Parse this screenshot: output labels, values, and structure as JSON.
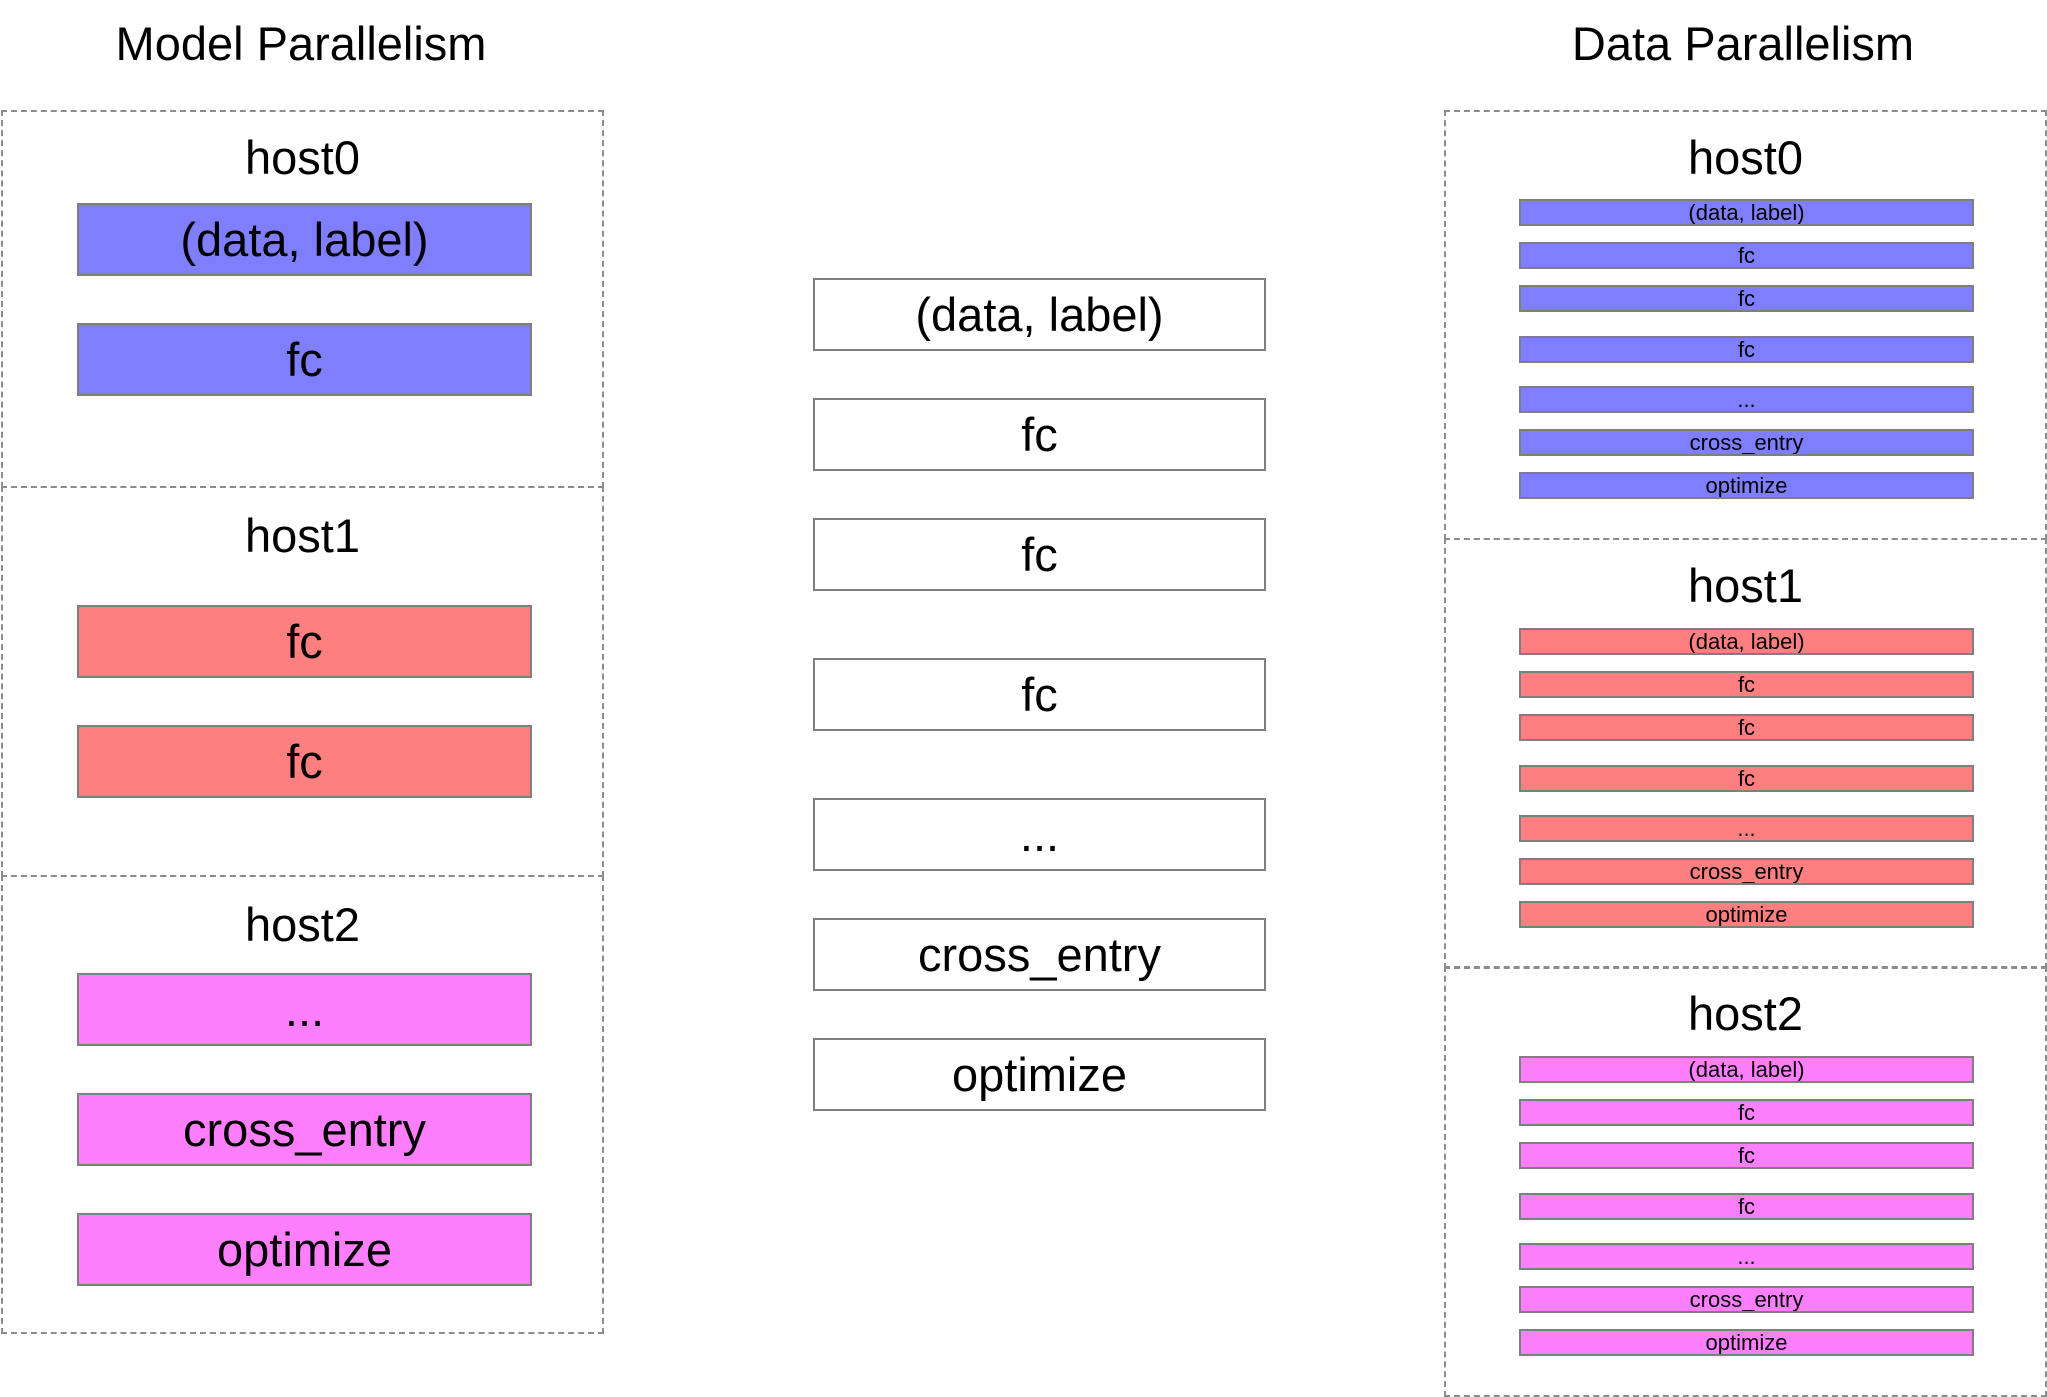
{
  "colors": {
    "host0": "#7f7ffe",
    "host1": "#fe7f7f",
    "host2": "#fe7ffe",
    "plain": "#ffffff",
    "border": "#7f7f7f",
    "dashed": "#8c8c8c"
  },
  "model_parallelism": {
    "title": "Model Parallelism",
    "hosts": [
      {
        "label": "host0",
        "layers": [
          "(data, label)",
          "fc"
        ]
      },
      {
        "label": "host1",
        "layers": [
          "fc",
          "fc"
        ]
      },
      {
        "label": "host2",
        "layers": [
          "...",
          "cross_entry",
          "optimize"
        ]
      }
    ]
  },
  "network": {
    "layers": [
      "(data, label)",
      "fc",
      "fc",
      "fc",
      "...",
      "cross_entry",
      "optimize"
    ]
  },
  "data_parallelism": {
    "title": "Data Parallelism",
    "hosts": [
      {
        "label": "host0",
        "layers": [
          "(data, label)",
          "fc",
          "fc",
          "fc",
          "...",
          "cross_entry",
          "optimize"
        ]
      },
      {
        "label": "host1",
        "layers": [
          "(data, label)",
          "fc",
          "fc",
          "fc",
          "...",
          "cross_entry",
          "optimize"
        ]
      },
      {
        "label": "host2",
        "layers": [
          "(data, label)",
          "fc",
          "fc",
          "fc",
          "...",
          "cross_entry",
          "optimize"
        ]
      }
    ]
  }
}
